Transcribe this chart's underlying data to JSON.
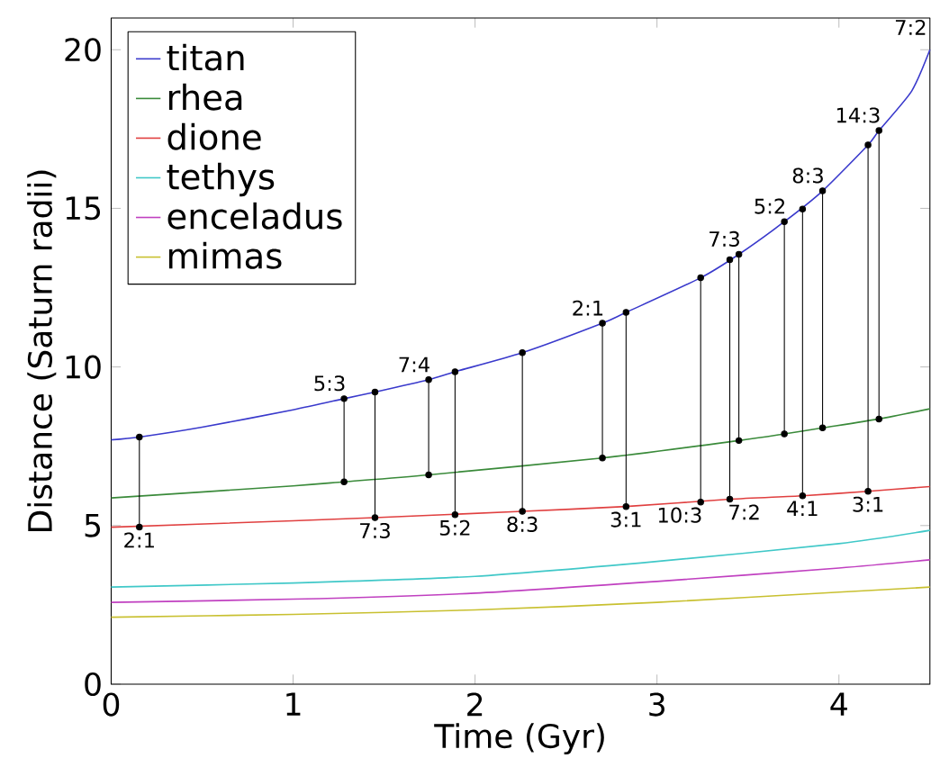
{
  "chart_data": {
    "type": "line",
    "xlabel": "Time (Gyr)",
    "ylabel": "Distance (Saturn radii)",
    "xlim": [
      0,
      4.5
    ],
    "ylim": [
      0,
      21
    ],
    "xticks": [
      0,
      1,
      2,
      3,
      4
    ],
    "yticks": [
      0,
      5,
      10,
      15,
      20
    ],
    "legend": "top left",
    "grid": false,
    "series": [
      {
        "name": "titan",
        "color": "#3a3acc",
        "x": [
          0,
          0.155,
          0.5,
          1,
          1.28,
          1.45,
          1.745,
          1.89,
          2.26,
          2.7,
          2.83,
          3.24,
          3.45,
          3.7,
          3.91,
          4.16,
          4.22,
          4.4,
          4.5
        ],
        "values": [
          7.7,
          7.79,
          8.1,
          8.65,
          9.0,
          9.21,
          9.6,
          9.85,
          10.45,
          11.38,
          11.72,
          12.81,
          13.55,
          14.58,
          15.55,
          17.0,
          17.45,
          18.7,
          20.0
        ]
      },
      {
        "name": "rhea",
        "color": "#3a8a3a",
        "x": [
          0,
          1,
          1.28,
          1.745,
          2.7,
          3.45,
          3.7,
          3.91,
          4.22,
          4.5
        ],
        "values": [
          5.87,
          6.25,
          6.38,
          6.6,
          7.13,
          7.68,
          7.89,
          8.08,
          8.36,
          8.68
        ]
      },
      {
        "name": "dione",
        "color": "#e04040",
        "x": [
          0,
          1,
          1.45,
          2.26,
          2.83,
          3.4,
          3.8,
          4.16,
          4.5
        ],
        "values": [
          4.95,
          5.15,
          5.25,
          5.45,
          5.6,
          5.83,
          5.94,
          6.08,
          6.23
        ]
      },
      {
        "name": "tethys",
        "color": "#40c8c8",
        "x": [
          0,
          1,
          2,
          3,
          4,
          4.5
        ],
        "values": [
          3.06,
          3.19,
          3.4,
          3.87,
          4.43,
          4.85
        ]
      },
      {
        "name": "enceladus",
        "color": "#c040c0",
        "x": [
          0,
          1,
          2,
          3,
          4,
          4.5
        ],
        "values": [
          2.58,
          2.68,
          2.87,
          3.24,
          3.66,
          3.92
        ]
      },
      {
        "name": "mimas",
        "color": "#c8c030",
        "x": [
          0,
          1,
          2,
          3,
          4,
          4.5
        ],
        "values": [
          2.11,
          2.2,
          2.34,
          2.58,
          2.9,
          3.06
        ]
      },
      {
        "color": "#000000",
        "marker": "circle",
        "x": [
          0.155,
          0.155,
          null,
          1.28,
          1.28,
          null,
          1.45,
          1.45,
          null,
          1.745,
          1.745,
          null,
          1.89,
          1.89,
          null,
          2.26,
          2.26,
          null,
          2.7,
          2.7,
          null,
          2.83,
          2.83,
          null,
          3.24,
          3.24,
          null,
          3.4,
          3.4,
          null,
          3.45,
          3.45,
          null,
          3.7,
          3.7,
          null,
          3.8,
          3.8,
          null,
          3.91,
          3.91,
          null,
          4.16,
          4.16,
          null,
          4.22,
          4.22
        ],
        "values": [
          7.79,
          4.95,
          null,
          9.0,
          6.38,
          null,
          9.21,
          5.25,
          null,
          9.6,
          6.6,
          null,
          9.85,
          5.34,
          null,
          10.45,
          5.45,
          null,
          11.38,
          7.13,
          null,
          11.72,
          5.6,
          null,
          12.81,
          5.74,
          null,
          13.38,
          5.83,
          null,
          13.55,
          7.68,
          null,
          14.58,
          7.89,
          null,
          14.98,
          5.94,
          null,
          15.55,
          8.08,
          null,
          17.0,
          6.08,
          null,
          17.45,
          8.36
        ]
      }
    ],
    "annotations": [
      {
        "text": "2:1",
        "x": 0.155,
        "y": 4.95
      },
      {
        "text": "5:3",
        "x": 1.28,
        "y": 9.0
      },
      {
        "text": "7:3",
        "x": 1.45,
        "y": 5.25
      },
      {
        "text": "7:4",
        "x": 1.745,
        "y": 9.6
      },
      {
        "text": "5:2",
        "x": 1.89,
        "y": 5.34
      },
      {
        "text": "8:3",
        "x": 2.26,
        "y": 5.45
      },
      {
        "text": "2:1",
        "x": 2.7,
        "y": 11.38
      },
      {
        "text": "3:1",
        "x": 2.83,
        "y": 5.6
      },
      {
        "text": "10:3",
        "x": 3.24,
        "y": 5.74
      },
      {
        "text": "7:2",
        "x": 3.4,
        "y": 5.83
      },
      {
        "text": "7:3",
        "x": 3.45,
        "y": 13.55
      },
      {
        "text": "5:2",
        "x": 3.7,
        "y": 14.58
      },
      {
        "text": "4:1",
        "x": 3.8,
        "y": 5.94
      },
      {
        "text": "8:3",
        "x": 3.91,
        "y": 15.55
      },
      {
        "text": "3:1",
        "x": 4.16,
        "y": 6.08
      },
      {
        "text": "14:3",
        "x": 4.22,
        "y": 17.45
      },
      {
        "text": "7:2",
        "x": 4.5,
        "y": 20.0
      }
    ]
  }
}
